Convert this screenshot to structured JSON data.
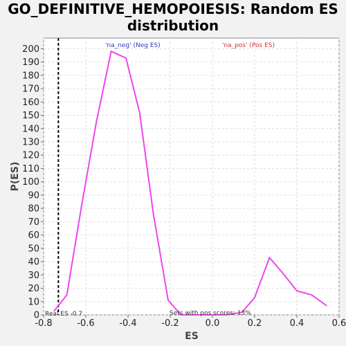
{
  "chart_data": {
    "type": "line",
    "title": [
      "GO_DEFINITIVE_HEMOPOIESIS: Random ES",
      "distribution"
    ],
    "xlabel": "ES",
    "ylabel": "P(ES)",
    "xlim": [
      -0.8,
      0.6
    ],
    "ylim": [
      0,
      208
    ],
    "x_ticks": [
      -0.8,
      -0.6,
      -0.4,
      -0.2,
      0.0,
      0.2,
      0.4,
      0.6
    ],
    "x_tick_labels": [
      "-0.8",
      "-0.6",
      "-0.4",
      "-0.2",
      "0.0",
      "0.2",
      "0.4",
      "0.6"
    ],
    "y_ticks": [
      0,
      10,
      20,
      30,
      40,
      50,
      60,
      70,
      80,
      90,
      100,
      110,
      120,
      130,
      140,
      150,
      160,
      170,
      180,
      190,
      200
    ],
    "grid": true,
    "series": [
      {
        "color": "#ee44ee",
        "x": [
          -0.75,
          -0.69,
          -0.62,
          -0.55,
          -0.48,
          -0.41,
          -0.345,
          -0.28,
          -0.21,
          -0.15,
          -0.08,
          0.0,
          0.07,
          0.14,
          0.2,
          0.27,
          0.33,
          0.4,
          0.47,
          0.54
        ],
        "y": [
          3,
          15,
          82,
          145,
          198,
          193,
          152,
          76,
          11,
          0,
          0,
          0,
          0,
          2,
          13,
          43,
          32,
          18,
          15,
          7
        ]
      }
    ],
    "real_es": {
      "x": -0.73,
      "label": "Real ES -0.7"
    },
    "annotations": {
      "neg": "'na_neg' (Neg ES)",
      "pos": "'na_pos' (Pos ES)",
      "pos_scores": "Sets with pos scores: 13%"
    },
    "colors": {
      "line": "#ee44ee",
      "neg_text": "#3333cc",
      "pos_text": "#cc3333",
      "grid": "#dddddd",
      "plot_bg": "#ffffff",
      "page_bg": "#f2f2f2"
    }
  }
}
